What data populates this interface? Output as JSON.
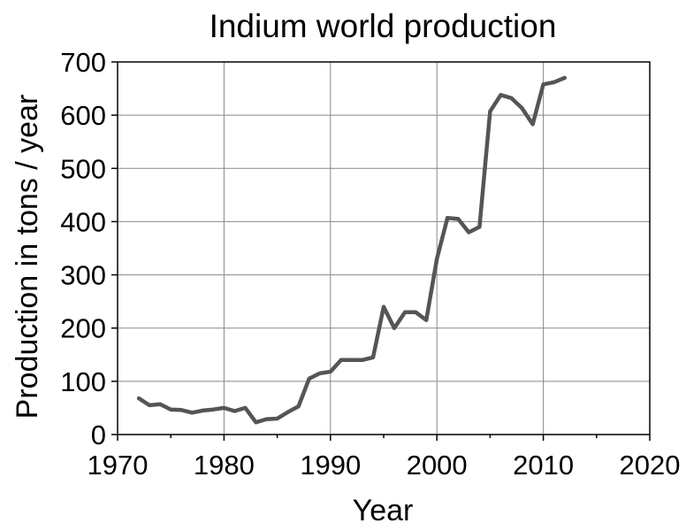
{
  "chart_data": {
    "type": "line",
    "title": "Indium world production",
    "xlabel": "Year",
    "ylabel": "Production in tons / year",
    "xlim": [
      1970,
      2020
    ],
    "ylim": [
      0,
      700
    ],
    "xticks": [
      1970,
      1980,
      1990,
      2000,
      2010,
      2020
    ],
    "yticks": [
      0,
      100,
      200,
      300,
      400,
      500,
      600,
      700
    ],
    "grid": true,
    "legend": "none",
    "line_color": "#555555",
    "series": [
      {
        "x": [
          1972,
          1973,
          1974,
          1975,
          1976,
          1977,
          1978,
          1979,
          1980,
          1981,
          1982,
          1983,
          1984,
          1985,
          1986,
          1987,
          1988,
          1989,
          1990,
          1991,
          1992,
          1993,
          1994,
          1995,
          1996,
          1997,
          1998,
          1999,
          2000,
          2001,
          2002,
          2003,
          2004,
          2005,
          2006,
          2007,
          2008,
          2009,
          2010,
          2011,
          2012
        ],
        "values": [
          68,
          55,
          57,
          47,
          46,
          41,
          45,
          47,
          50,
          44,
          50,
          23,
          29,
          30,
          42,
          53,
          105,
          115,
          118,
          140,
          140,
          140,
          145,
          240,
          200,
          230,
          230,
          215,
          330,
          407,
          405,
          380,
          390,
          607,
          638,
          632,
          613,
          583,
          658,
          662,
          670
        ]
      }
    ]
  }
}
